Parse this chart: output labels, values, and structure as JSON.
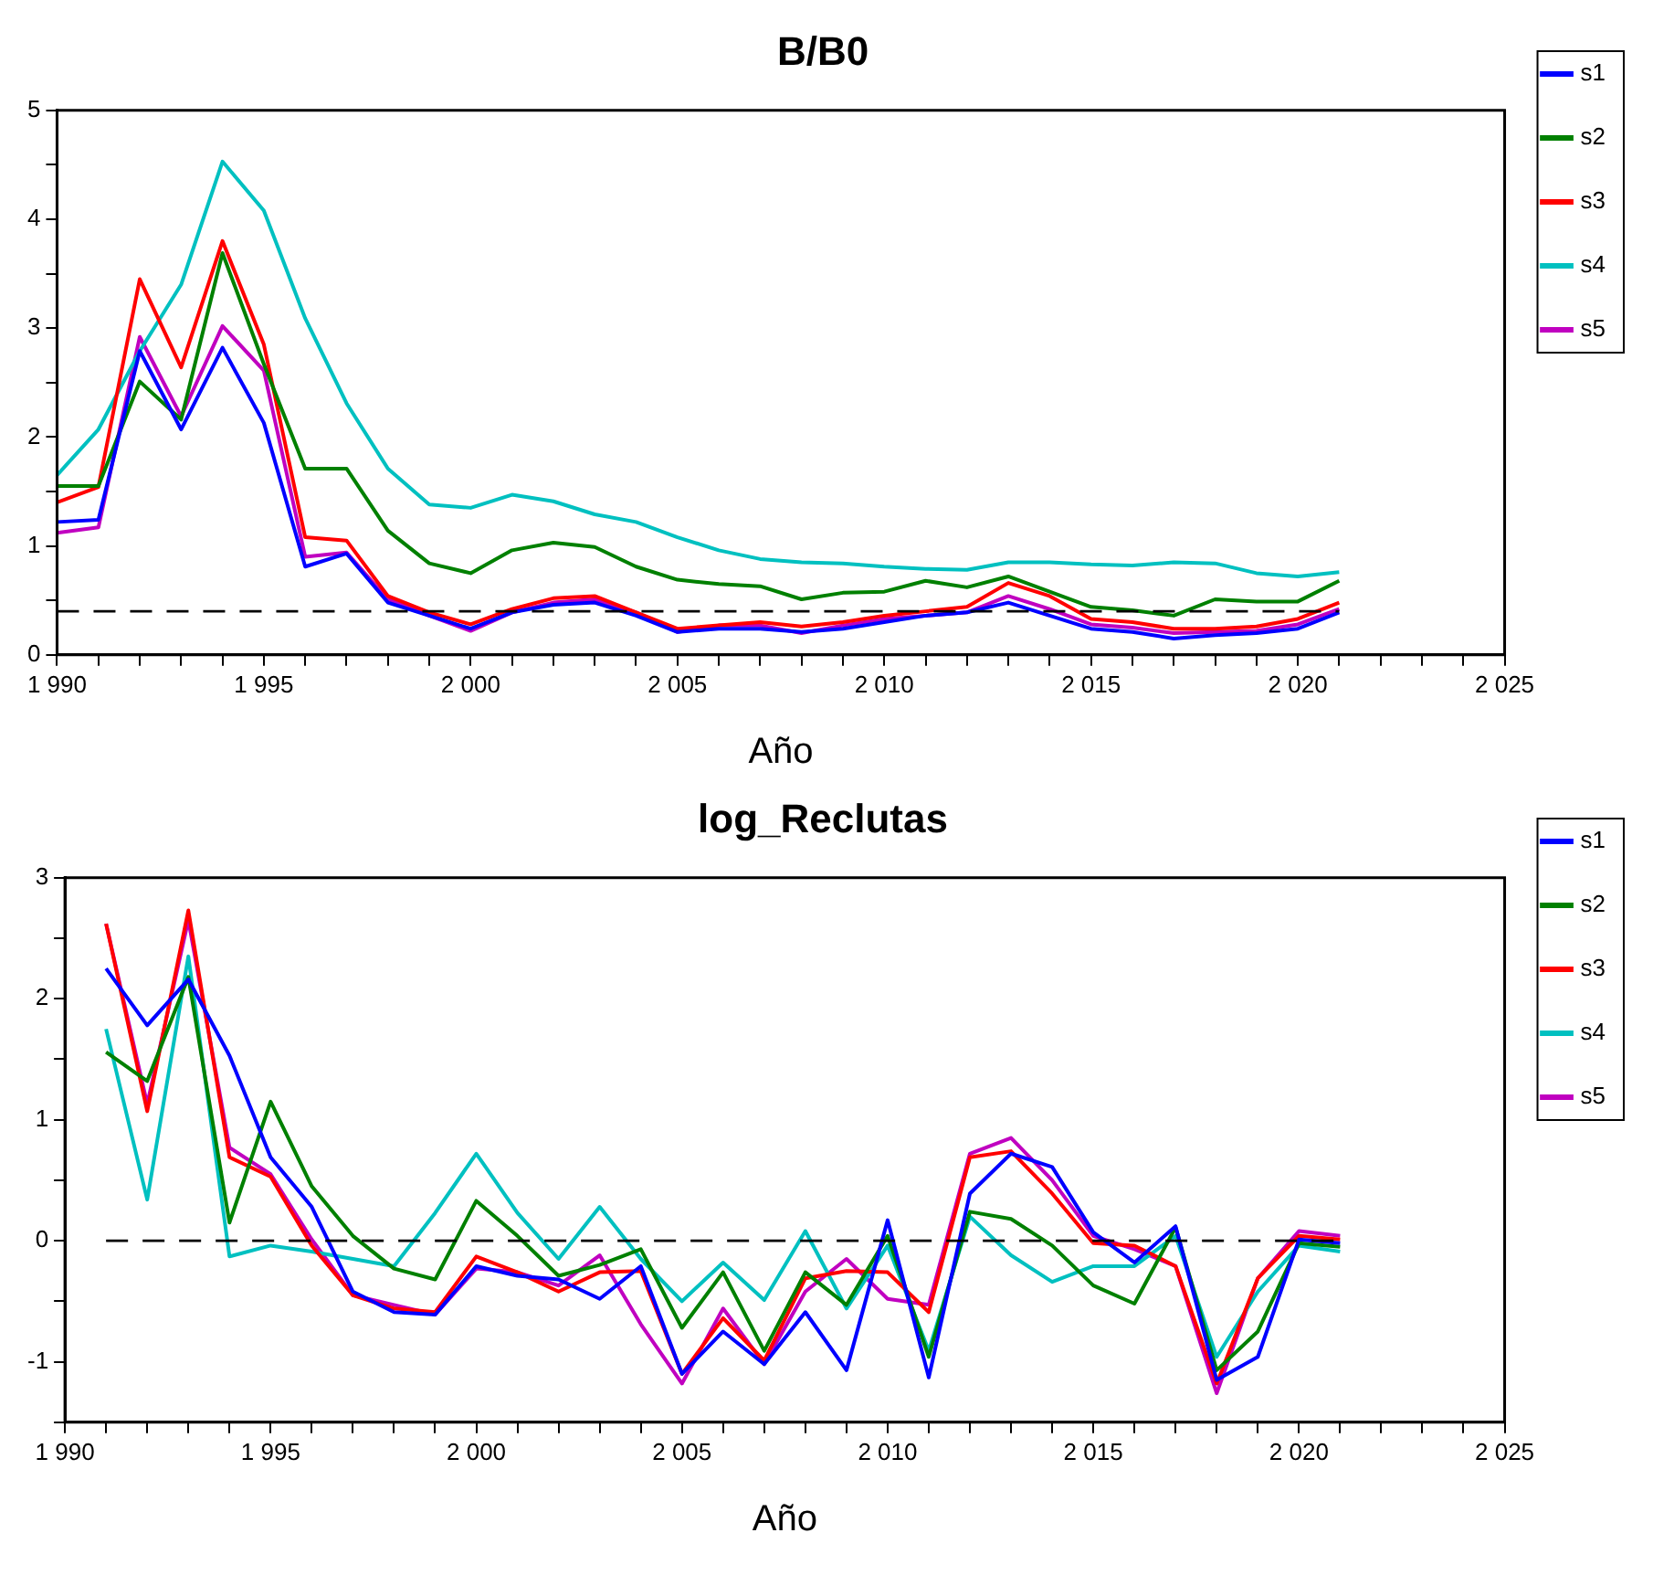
{
  "chart_data": [
    {
      "type": "line",
      "title": "B/B0",
      "xlabel": "Año",
      "legend": "top right",
      "grid": false,
      "marker": "none",
      "line_style": "solid",
      "x": [
        1990,
        1991,
        1992,
        1993,
        1994,
        1995,
        1996,
        1997,
        1998,
        1999,
        2000,
        2001,
        2002,
        2003,
        2004,
        2005,
        2006,
        2007,
        2008,
        2009,
        2010,
        2011,
        2012,
        2013,
        2014,
        2015,
        2016,
        2017,
        2018,
        2019,
        2020,
        2021
      ],
      "xlim": [
        1990,
        2025
      ],
      "xticks": [
        {
          "value": 1990,
          "label": "1 990"
        },
        {
          "value": 1991,
          "label": null
        },
        {
          "value": 1992,
          "label": null
        },
        {
          "value": 1993,
          "label": null
        },
        {
          "value": 1994,
          "label": null
        },
        {
          "value": 1995,
          "label": "1 995"
        },
        {
          "value": 1996,
          "label": null
        },
        {
          "value": 1997,
          "label": null
        },
        {
          "value": 1998,
          "label": null
        },
        {
          "value": 1999,
          "label": null
        },
        {
          "value": 2000,
          "label": "2 000"
        },
        {
          "value": 2001,
          "label": null
        },
        {
          "value": 2002,
          "label": null
        },
        {
          "value": 2003,
          "label": null
        },
        {
          "value": 2004,
          "label": null
        },
        {
          "value": 2005,
          "label": "2 005"
        },
        {
          "value": 2006,
          "label": null
        },
        {
          "value": 2007,
          "label": null
        },
        {
          "value": 2008,
          "label": null
        },
        {
          "value": 2009,
          "label": null
        },
        {
          "value": 2010,
          "label": "2 010"
        },
        {
          "value": 2011,
          "label": null
        },
        {
          "value": 2012,
          "label": null
        },
        {
          "value": 2013,
          "label": null
        },
        {
          "value": 2014,
          "label": null
        },
        {
          "value": 2015,
          "label": "2 015"
        },
        {
          "value": 2016,
          "label": null
        },
        {
          "value": 2017,
          "label": null
        },
        {
          "value": 2018,
          "label": null
        },
        {
          "value": 2019,
          "label": null
        },
        {
          "value": 2020,
          "label": "2 020"
        },
        {
          "value": 2021,
          "label": null
        },
        {
          "value": 2022,
          "label": null
        },
        {
          "value": 2023,
          "label": null
        },
        {
          "value": 2024,
          "label": null
        },
        {
          "value": 2025,
          "label": "2 025"
        }
      ],
      "ylim": [
        0,
        5
      ],
      "yticks": [
        0,
        {
          "value": 0.5,
          "label": null
        },
        1,
        {
          "value": 1.5,
          "label": null
        },
        2,
        {
          "value": 2.5,
          "label": null
        },
        3,
        {
          "value": 3.5,
          "label": null
        },
        4,
        {
          "value": 4.5,
          "label": null
        },
        5
      ],
      "ref_lines": [
        {
          "axis": "y",
          "value": 0.4,
          "color": "#000000",
          "line_style": "dashed"
        }
      ],
      "series": [
        {
          "name": "s1",
          "color": "#0000ff",
          "values": [
            1.22,
            1.24,
            2.79,
            2.07,
            2.82,
            2.13,
            0.81,
            0.93,
            0.48,
            0.36,
            0.24,
            0.39,
            0.46,
            0.48,
            0.36,
            0.21,
            0.24,
            0.24,
            0.21,
            0.24,
            0.3,
            0.36,
            0.39,
            0.48,
            0.36,
            0.24,
            0.21,
            0.15,
            0.18,
            0.2,
            0.24,
            0.39
          ]
        },
        {
          "name": "s2",
          "color": "#008000",
          "values": [
            1.55,
            1.55,
            2.51,
            2.16,
            3.69,
            2.67,
            1.71,
            1.71,
            1.14,
            0.84,
            0.75,
            0.96,
            1.03,
            0.99,
            0.81,
            0.69,
            0.65,
            0.63,
            0.51,
            0.57,
            0.58,
            0.68,
            0.62,
            0.72,
            0.58,
            0.44,
            0.41,
            0.36,
            0.51,
            0.49,
            0.49,
            0.68
          ]
        },
        {
          "name": "s3",
          "color": "#ff0000",
          "values": [
            1.4,
            1.54,
            3.45,
            2.64,
            3.8,
            2.85,
            1.08,
            1.05,
            0.54,
            0.39,
            0.28,
            0.42,
            0.52,
            0.54,
            0.39,
            0.24,
            0.27,
            0.3,
            0.26,
            0.3,
            0.36,
            0.4,
            0.44,
            0.66,
            0.54,
            0.33,
            0.3,
            0.24,
            0.24,
            0.26,
            0.33,
            0.48
          ]
        },
        {
          "name": "s4",
          "color": "#00c0c0",
          "values": [
            1.65,
            2.07,
            2.79,
            3.4,
            4.53,
            4.08,
            3.09,
            2.31,
            1.71,
            1.38,
            1.35,
            1.47,
            1.41,
            1.29,
            1.22,
            1.08,
            0.96,
            0.88,
            0.85,
            0.84,
            0.81,
            0.79,
            0.78,
            0.85,
            0.85,
            0.83,
            0.82,
            0.85,
            0.84,
            0.75,
            0.72,
            0.76
          ]
        },
        {
          "name": "s5",
          "color": "#c000c0",
          "values": [
            1.12,
            1.17,
            2.92,
            2.19,
            3.02,
            2.61,
            0.9,
            0.94,
            0.51,
            0.36,
            0.22,
            0.39,
            0.48,
            0.51,
            0.39,
            0.21,
            0.27,
            0.27,
            0.2,
            0.27,
            0.33,
            0.36,
            0.39,
            0.54,
            0.42,
            0.28,
            0.25,
            0.2,
            0.21,
            0.22,
            0.28,
            0.42
          ]
        }
      ]
    },
    {
      "type": "line",
      "title": "log_Reclutas",
      "xlabel": "Año",
      "legend": "top right",
      "grid": false,
      "marker": "none",
      "line_style": "solid",
      "x": [
        1991,
        1992,
        1993,
        1994,
        1995,
        1996,
        1997,
        1998,
        1999,
        2000,
        2001,
        2002,
        2003,
        2004,
        2005,
        2006,
        2007,
        2008,
        2009,
        2010,
        2011,
        2012,
        2013,
        2014,
        2015,
        2016,
        2017,
        2018,
        2019,
        2020,
        2021
      ],
      "xlim": [
        1990,
        2025
      ],
      "xticks": [
        {
          "value": 1990,
          "label": "1 990"
        },
        {
          "value": 1991,
          "label": null
        },
        {
          "value": 1992,
          "label": null
        },
        {
          "value": 1993,
          "label": null
        },
        {
          "value": 1994,
          "label": null
        },
        {
          "value": 1995,
          "label": "1 995"
        },
        {
          "value": 1996,
          "label": null
        },
        {
          "value": 1997,
          "label": null
        },
        {
          "value": 1998,
          "label": null
        },
        {
          "value": 1999,
          "label": null
        },
        {
          "value": 2000,
          "label": "2 000"
        },
        {
          "value": 2001,
          "label": null
        },
        {
          "value": 2002,
          "label": null
        },
        {
          "value": 2003,
          "label": null
        },
        {
          "value": 2004,
          "label": null
        },
        {
          "value": 2005,
          "label": "2 005"
        },
        {
          "value": 2006,
          "label": null
        },
        {
          "value": 2007,
          "label": null
        },
        {
          "value": 2008,
          "label": null
        },
        {
          "value": 2009,
          "label": null
        },
        {
          "value": 2010,
          "label": "2 010"
        },
        {
          "value": 2011,
          "label": null
        },
        {
          "value": 2012,
          "label": null
        },
        {
          "value": 2013,
          "label": null
        },
        {
          "value": 2014,
          "label": null
        },
        {
          "value": 2015,
          "label": "2 015"
        },
        {
          "value": 2016,
          "label": null
        },
        {
          "value": 2017,
          "label": null
        },
        {
          "value": 2018,
          "label": null
        },
        {
          "value": 2019,
          "label": null
        },
        {
          "value": 2020,
          "label": "2 020"
        },
        {
          "value": 2021,
          "label": null
        },
        {
          "value": 2022,
          "label": null
        },
        {
          "value": 2023,
          "label": null
        },
        {
          "value": 2024,
          "label": null
        },
        {
          "value": 2025,
          "label": "2 025"
        }
      ],
      "ylim": [
        -1.5,
        3
      ],
      "yticks": [
        {
          "value": -1.5,
          "label": null
        },
        -1,
        {
          "value": -0.5,
          "label": null
        },
        0,
        {
          "value": 0.5,
          "label": null
        },
        1,
        {
          "value": 1.5,
          "label": null
        },
        2,
        {
          "value": 2.5,
          "label": null
        },
        3
      ],
      "ref_lines": [
        {
          "axis": "y",
          "value": 0,
          "color": "#000000",
          "line_style": "dashed"
        }
      ],
      "series": [
        {
          "name": "s1",
          "color": "#0000ff",
          "values": [
            2.25,
            1.78,
            2.16,
            1.53,
            0.69,
            0.28,
            -0.42,
            -0.59,
            -0.61,
            -0.21,
            -0.29,
            -0.32,
            -0.48,
            -0.21,
            -1.1,
            -0.75,
            -1.02,
            -0.59,
            -1.07,
            0.17,
            -1.13,
            0.39,
            0.72,
            0.61,
            0.07,
            -0.18,
            0.12,
            -1.15,
            -0.96,
            0.01,
            -0.02
          ]
        },
        {
          "name": "s2",
          "color": "#008000",
          "values": [
            1.56,
            1.32,
            2.18,
            0.15,
            1.15,
            0.45,
            0.04,
            -0.23,
            -0.32,
            0.33,
            0.04,
            -0.29,
            -0.2,
            -0.07,
            -0.72,
            -0.26,
            -0.91,
            -0.26,
            -0.53,
            0.04,
            -0.96,
            0.24,
            0.18,
            -0.04,
            -0.37,
            -0.52,
            0.11,
            -1.07,
            -0.75,
            -0.02,
            -0.05
          ]
        },
        {
          "name": "s3",
          "color": "#ff0000",
          "values": [
            2.62,
            1.07,
            2.73,
            0.69,
            0.53,
            -0.04,
            -0.45,
            -0.56,
            -0.59,
            -0.13,
            -0.26,
            -0.42,
            -0.26,
            -0.25,
            -1.1,
            -0.64,
            -0.99,
            -0.31,
            -0.25,
            -0.26,
            -0.59,
            0.69,
            0.74,
            0.39,
            -0.02,
            -0.04,
            -0.21,
            -1.18,
            -0.31,
            0.04,
            0.01
          ]
        },
        {
          "name": "s4",
          "color": "#00c0c0",
          "values": [
            1.75,
            0.34,
            2.35,
            -0.13,
            -0.04,
            -0.09,
            -0.15,
            -0.21,
            0.23,
            0.72,
            0.23,
            -0.15,
            0.28,
            -0.15,
            -0.5,
            -0.18,
            -0.49,
            0.08,
            -0.56,
            -0.04,
            -0.91,
            0.2,
            -0.12,
            -0.34,
            -0.21,
            -0.21,
            0.04,
            -0.96,
            -0.42,
            -0.04,
            -0.09
          ]
        },
        {
          "name": "s5",
          "color": "#c000c0",
          "values": [
            2.62,
            1.13,
            2.65,
            0.77,
            0.55,
            0.01,
            -0.45,
            -0.53,
            -0.61,
            -0.23,
            -0.26,
            -0.37,
            -0.12,
            -0.69,
            -1.18,
            -0.56,
            -1.02,
            -0.42,
            -0.15,
            -0.48,
            -0.53,
            0.72,
            0.85,
            0.5,
            0.04,
            -0.07,
            -0.21,
            -1.26,
            -0.31,
            0.08,
            0.04
          ]
        }
      ]
    }
  ]
}
